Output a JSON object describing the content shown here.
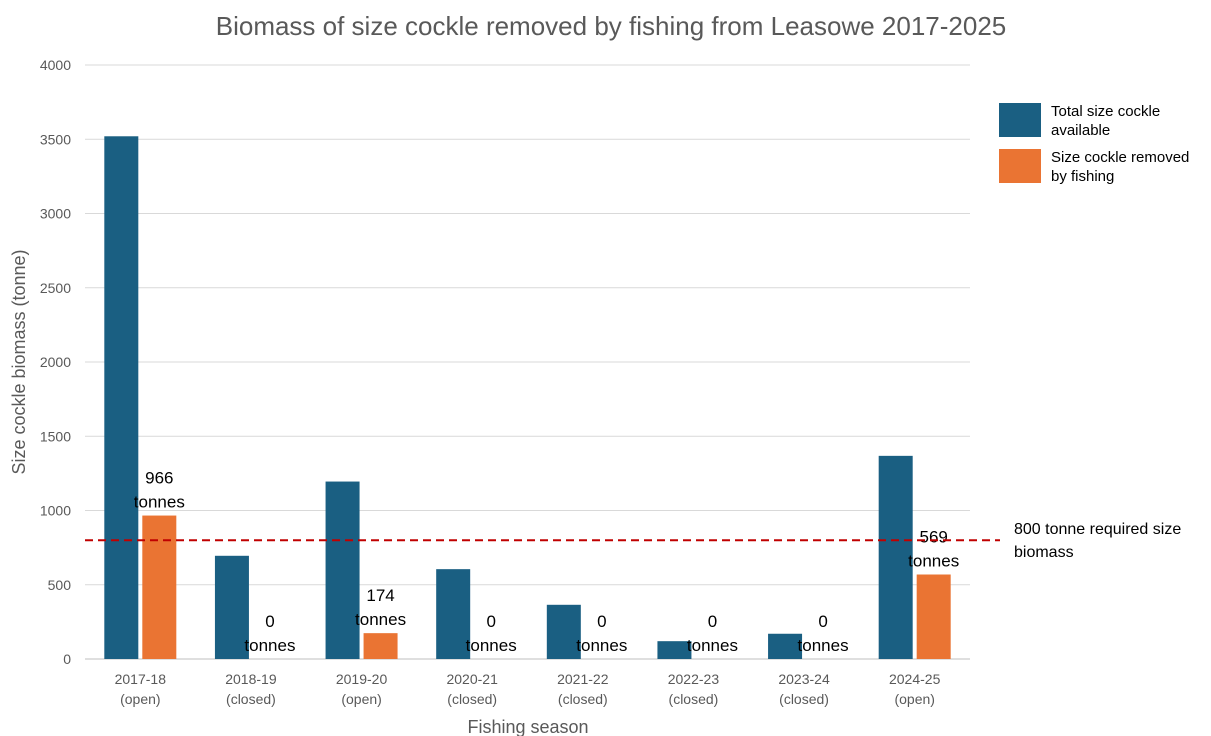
{
  "chart_data": {
    "type": "bar",
    "title": "Biomass of size cockle removed by fishing from Leasowe 2017-2025",
    "xlabel": "Fishing season",
    "ylabel": "Size cockle biomass (tonne)",
    "ylim": [
      0,
      4000
    ],
    "yticks": [
      "0",
      "500",
      "1000",
      "1500",
      "2000",
      "2500",
      "3000",
      "3500",
      "4000"
    ],
    "grid": true,
    "legend_position": "top-right",
    "categories": [
      [
        "2017-18",
        "(open)"
      ],
      [
        "2018-19",
        "(closed)"
      ],
      [
        "2019-20",
        "(open)"
      ],
      [
        "2020-21",
        "(closed)"
      ],
      [
        "2021-22",
        "(closed)"
      ],
      [
        "2022-23",
        "(closed)"
      ],
      [
        "2023-24",
        "(closed)"
      ],
      [
        "2024-25",
        "(open)"
      ]
    ],
    "series": [
      {
        "name": "Total size cockle available",
        "legend_lines": [
          "Total size cockle",
          "available"
        ],
        "color": "#1a5f82",
        "values": [
          3520,
          695,
          1195,
          605,
          365,
          120,
          170,
          1368
        ]
      },
      {
        "name": "Size cockle removed by fishing",
        "legend_lines": [
          "Size cockle removed",
          "by fishing"
        ],
        "color": "#ea7433",
        "values": [
          966,
          0,
          174,
          0,
          0,
          0,
          0,
          569
        ],
        "data_labels": [
          [
            "966",
            "tonnes"
          ],
          [
            "0",
            "tonnes"
          ],
          [
            "174",
            "tonnes"
          ],
          [
            "0",
            "tonnes"
          ],
          [
            "0",
            "tonnes"
          ],
          [
            "0",
            "tonnes"
          ],
          [
            "0",
            "tonnes"
          ],
          [
            "569",
            "tonnes"
          ]
        ]
      }
    ],
    "reference_line": {
      "value": 800,
      "label_lines": [
        "800 tonne required size",
        "biomass"
      ],
      "color": "#c00000",
      "style": "dashed"
    }
  }
}
